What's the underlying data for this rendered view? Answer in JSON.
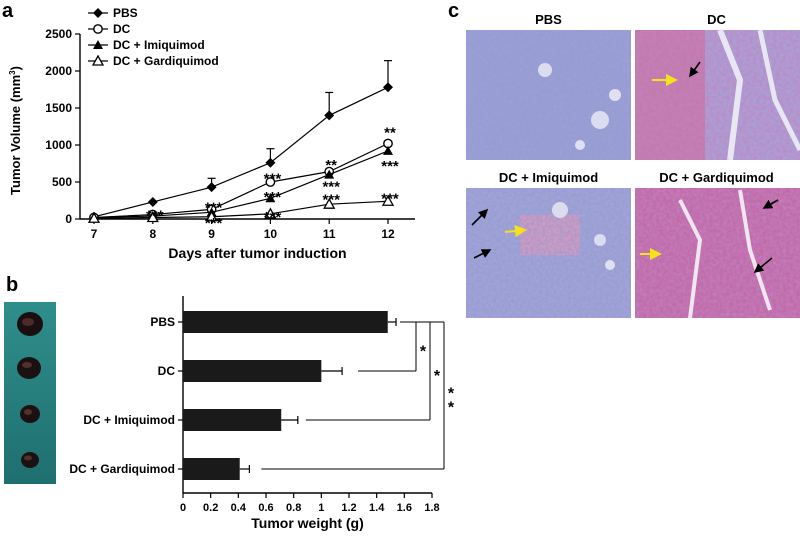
{
  "panels": {
    "a": "a",
    "b": "b",
    "c": "c"
  },
  "chart_data": [
    {
      "type": "line",
      "panel": "a",
      "xlabel": "Days after tumor induction",
      "ylabel": "Tumor Volume (mm³)",
      "ylabel_main": "Tumor Volume (mm",
      "ylabel_sup": "3",
      "ylabel_end": ")",
      "x": [
        7,
        8,
        9,
        10,
        11,
        12
      ],
      "xlim": [
        7,
        12
      ],
      "ylim": [
        0,
        2500
      ],
      "yticks": [
        0,
        500,
        1000,
        1500,
        2000,
        2500
      ],
      "xticks": [
        7,
        8,
        9,
        10,
        11,
        12
      ],
      "legend_position": "top-left",
      "series": [
        {
          "name": "PBS",
          "marker": "filled-diamond",
          "values": [
            30,
            230,
            430,
            760,
            1400,
            1780
          ],
          "errors": [
            0,
            0,
            120,
            190,
            310,
            360
          ]
        },
        {
          "name": "DC",
          "marker": "open-circle",
          "values": [
            20,
            60,
            130,
            500,
            640,
            1020
          ],
          "errors": [
            0,
            0,
            0,
            0,
            0,
            0
          ]
        },
        {
          "name": "DC + Imiquimod",
          "marker": "filled-triangle",
          "values": [
            20,
            40,
            90,
            280,
            600,
            920
          ],
          "errors": [
            0,
            0,
            0,
            0,
            0,
            0
          ]
        },
        {
          "name": "DC + Gardiquimod",
          "marker": "open-triangle",
          "values": [
            10,
            20,
            30,
            70,
            200,
            240
          ],
          "errors": [
            0,
            0,
            0,
            0,
            0,
            0
          ]
        }
      ],
      "annotations": [
        {
          "x": 12,
          "y": 1180,
          "text": "**"
        },
        {
          "x": 12,
          "y": 730,
          "text": "***"
        },
        {
          "x": 12,
          "y": 290,
          "text": "***"
        },
        {
          "x": 11,
          "y": 740,
          "text": "**"
        },
        {
          "x": 11,
          "y": 450,
          "text": "***"
        },
        {
          "x": 11,
          "y": 280,
          "text": "***"
        },
        {
          "x": 10,
          "y": 560,
          "text": "***"
        },
        {
          "x": 10,
          "y": 310,
          "text": "***"
        },
        {
          "x": 10,
          "y": 40,
          "text": "***"
        },
        {
          "x": 9,
          "y": 170,
          "text": "***"
        },
        {
          "x": 9,
          "y": -40,
          "text": "***"
        },
        {
          "x": 8,
          "y": 60,
          "text": "***"
        }
      ]
    },
    {
      "type": "bar",
      "orientation": "horizontal",
      "panel": "b",
      "xlabel": "Tumor weight (g)",
      "categories": [
        "PBS",
        "DC",
        "DC + Imiquimod",
        "DC + Gardiquimod"
      ],
      "values": [
        1.48,
        1.0,
        0.71,
        0.41
      ],
      "errors": [
        0.06,
        0.15,
        0.12,
        0.07
      ],
      "xlim": [
        0,
        1.8
      ],
      "xticks": [
        "0",
        "0.2",
        "0.4",
        "0.6",
        "0.8",
        "1",
        "1.2",
        "1.4",
        "1.6",
        "1.8"
      ],
      "significance": [
        {
          "from": "PBS",
          "to": "DC",
          "text": "*"
        },
        {
          "from": "PBS",
          "to": "DC + Imiquimod",
          "text": "*"
        },
        {
          "from": "PBS",
          "to": "DC + Gardiquimod",
          "text": "*\n*",
          "lines": [
            "*",
            "*"
          ]
        }
      ]
    }
  ],
  "micrographs": {
    "pbs": "PBS",
    "dc": "DC",
    "imiquimod": "DC + Imiquimod",
    "gardiquimod": "DC + Gardiquimod"
  },
  "colors": {
    "data": "#000000",
    "stain_blue": "#7a80c4",
    "stain_pink": "#c46aa8",
    "arrow_yellow": "#f4e21a",
    "tumor_bg": "#2a8a86"
  }
}
